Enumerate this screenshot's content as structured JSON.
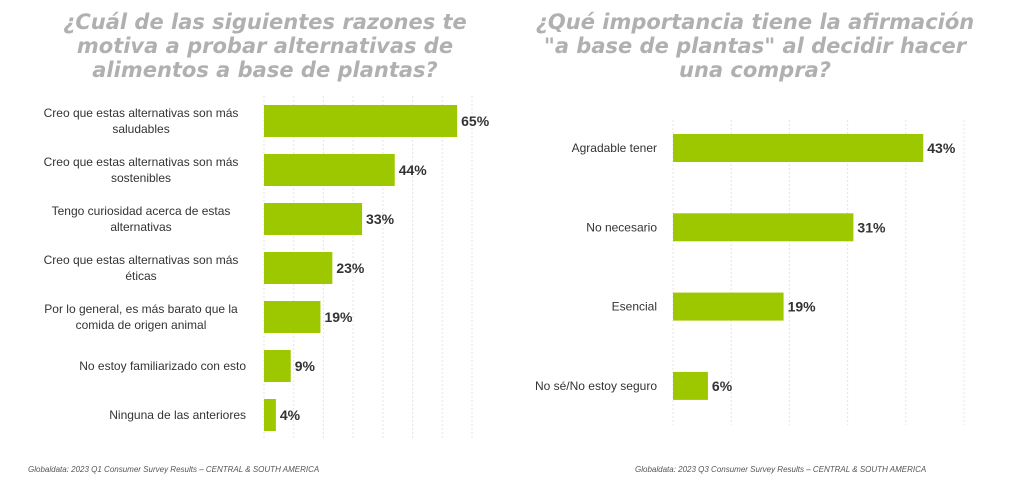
{
  "chart_data": [
    {
      "type": "bar",
      "orientation": "horizontal",
      "title": "¿Cuál de las siguientes razones te motiva a probar alternativas de alimentos a base de plantas?",
      "categories": [
        [
          "Creo que estas alternativas son más",
          "saludables"
        ],
        [
          "Creo que estas alternativas son más",
          "sostenibles"
        ],
        [
          "Tengo curiosidad acerca de estas",
          "alternativas"
        ],
        [
          "Creo que estas alternativas son más",
          "éticas"
        ],
        [
          "Por lo general, es más barato que la",
          "comida de origen animal"
        ],
        [
          "No estoy familiarizado con esto"
        ],
        [
          "Ninguna de las anteriores"
        ]
      ],
      "values": [
        65,
        44,
        33,
        23,
        19,
        9,
        4
      ],
      "unit": "%",
      "xlim": [
        0,
        70
      ],
      "grid": true,
      "color": "#9dc800",
      "source": "Globaldata: 2023 Q1 Consumer Survey Results – CENTRAL & SOUTH AMERICA"
    },
    {
      "type": "bar",
      "orientation": "horizontal",
      "title": "¿Qué importancia tiene la afirmación \"a base de plantas\" al decidir hacer una compra?",
      "categories": [
        [
          "Agradable tener"
        ],
        [
          "No necesario"
        ],
        [
          "Esencial"
        ],
        [
          "No sé/No estoy seguro"
        ]
      ],
      "values": [
        43,
        31,
        19,
        6
      ],
      "unit": "%",
      "xlim": [
        0,
        50
      ],
      "grid": true,
      "color": "#9dc800",
      "source": "Globaldata: 2023 Q3 Consumer Survey Results – CENTRAL & SOUTH AMERICA"
    }
  ]
}
